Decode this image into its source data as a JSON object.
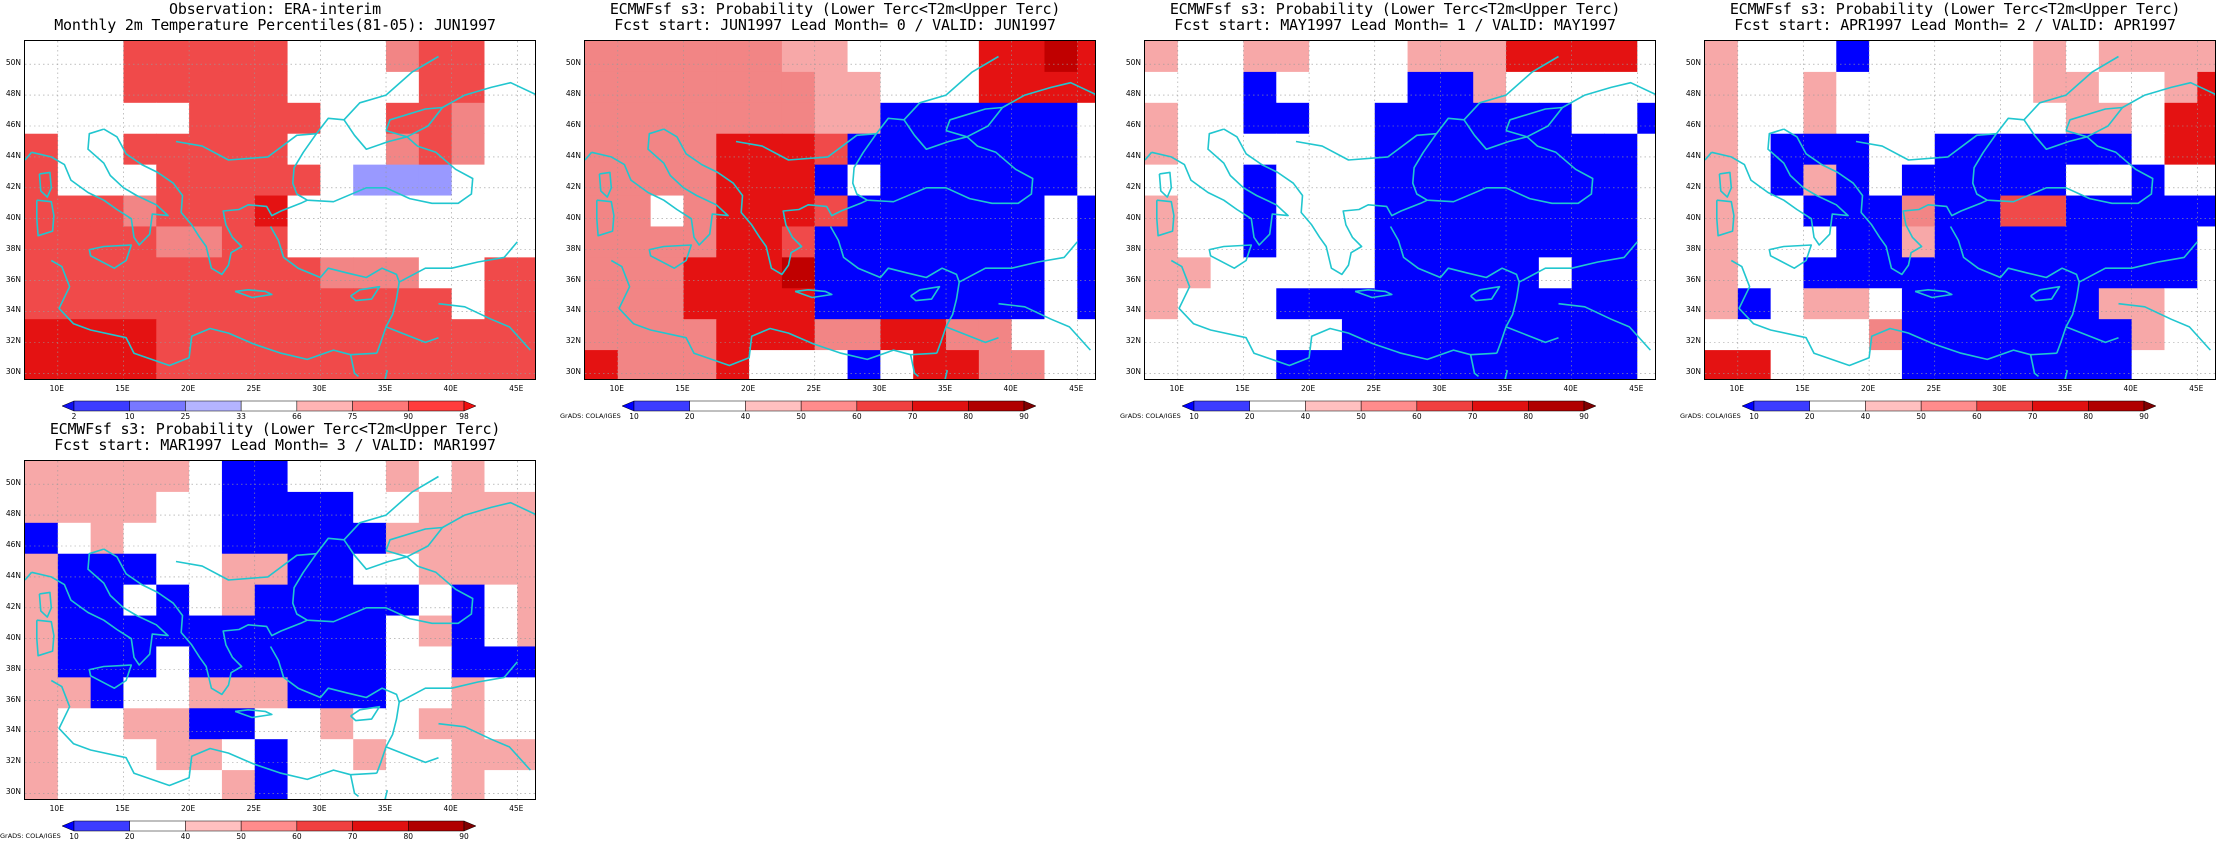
{
  "lat_labels": [
    "50N",
    "48N",
    "46N",
    "44N",
    "42N",
    "40N",
    "38N",
    "36N",
    "34N",
    "32N",
    "30N"
  ],
  "lon_labels": [
    "10E",
    "15E",
    "20E",
    "25E",
    "30E",
    "35E",
    "40E",
    "45E"
  ],
  "lon_range": [
    7.5,
    46.5
  ],
  "lat_range": [
    29.5,
    51.5
  ],
  "grid_origin": {
    "lon": 7.5,
    "lat": 51.5,
    "dlon": 2.5,
    "dlat": 2
  },
  "credit": "GrADS: COLA/IGES",
  "obs_colorbar": {
    "ticks": [
      "2",
      "10",
      "25",
      "33",
      "66",
      "75",
      "90",
      "98"
    ],
    "colors": [
      "#1010f0",
      "#3c3cff",
      "#7878ff",
      "#b4b4ff",
      "#ffffff",
      "#ffb4b4",
      "#ff7878",
      "#ff3c3c",
      "#f01010"
    ]
  },
  "prob_colorbar": {
    "ticks": [
      "10",
      "20",
      "40",
      "50",
      "60",
      "70",
      "80",
      "90"
    ],
    "colors": [
      "#0000ff",
      "#3c3cff",
      "#ffffff",
      "#ffc0c0",
      "#ff8c8c",
      "#f04040",
      "#e01010",
      "#b00000",
      "#800000"
    ]
  },
  "palette": {
    "B": "#0000ff",
    "b": "#9999ff",
    "W": "#ffffff",
    "p": "#f7a8a8",
    "q": "#f28585",
    "r": "#f04a4a",
    "R": "#e41212",
    "d": "#c00000",
    "D": "#990000"
  },
  "panels": [
    {
      "title1": "Observation: ERA-interim",
      "title2": "Monthly 2m Temperature Percentiles(81-05): JUN1997",
      "colorbar": "obs",
      "grid": [
        "WWWrrrrrWWWqrrWW",
        "WWWrrrrrWWWWrrWW",
        "WWWWWrrrrWWrrqWW",
        "rWWrrrrrWWWqrqWW",
        "rWWWrrrrrWbbbWWW",
        "rrrqrrrRWWWWWWWW",
        "rrrrqqrrWWWWWWWW",
        "rrrrrrrrrqqqWWrr",
        "rrrrrrrrrrrrrWrr",
        "RRRRrrrrrrrrrrrr",
        "RRRRrrrrrrrrrrrr"
      ]
    },
    {
      "title1": "ECMWFsf s3: Probability (Lower Terc<T2m<Upper Terc)",
      "title2": "Fcst start: JUN1997  Lead Month= 0 / VALID: JUN1997",
      "colorbar": "prob",
      "grid": [
        "qqqqqqppWWWWRRdR",
        "qqqqqqqppWWWRRRR",
        "qqqqqqqppBBBBBBW",
        "qqqqRRRrBBBBBBBW",
        "qqqqRRRBWBBBBBBW",
        "qqWqRRRrBBBBBBWB",
        "qqqqRRrBBBBBBBWB",
        "qqqRRRdBBBBBBBWB",
        "qqqRRRRBBBBBBBWB",
        "qqqqRRRqqRRqqWWW",
        "RqqqRWWWBWRRqqWW"
      ]
    },
    {
      "title1": "ECMWFsf s3: Probability (Lower Terc<T2m<Upper Terc)",
      "title2": "Fcst start: MAY1997  Lead Month= 1 / VALID: MAY1997",
      "colorbar": "prob",
      "grid": [
        "pWWppWWWpppRRRRW",
        "WWWBWWWWBBpWWWWW",
        "pWWBBWWBBBBBBWWB",
        "pWWWWWWBBBBBBBBW",
        "WWWBWWWBBBBBBBBW",
        "pWWBWWWBBBBBBBBW",
        "pWWBWWWBBBBBBBBW",
        "ppWWWWWBBBBBWBBW",
        "pWWWBBBBBBBBBBBW",
        "WWWWWWBBBBBBBBBW",
        "WWWWBBBBBBBBBBBW"
      ]
    },
    {
      "title1": "ECMWFsf s3: Probability (Lower Terc<T2m<Upper Terc)",
      "title2": "Fcst start: APR1997  Lead Month= 2 / VALID: APR1997",
      "colorbar": "prob",
      "grid": [
        "pWWWBWWWWWpWpppp",
        "pWWpWWWWWWppWWpR",
        "pWWpWWWWWWWppWRR",
        "pWBBBWWBBBBBBWRR",
        "pWBpBWBBBBBWWBWW",
        "pWWBBBqBBrrBBBBB",
        "pWWWBBpBBBBBBBBW",
        "pWWBBBBBBBBBBBBW",
        "pBWppWBBBBBBppWW",
        "WWWWWqBBBBBBBpWW",
        "RRWWWWBBBBBBBWWW"
      ]
    },
    {
      "title1": "ECMWFsf s3: Probability (Lower Terc<T2m<Upper Terc)",
      "title2": "Fcst start: MAR1997  Lead Month= 3 / VALID: MAR1997",
      "colorbar": "prob",
      "grid": [
        "pppppWBBWWWpWpWW",
        "ppppWWBBBBWWpppp",
        "BWpWWWBBBBBppppp",
        "pBBBWWppBBWWpppp",
        "pBBWBWpBBBBBWBWp",
        "pBBBBBBBBBBWpBWp",
        "pBBBWBBBBBBWWBBB",
        "ppBWWpppBBBWWpWW",
        "pWWppBBWWpWWppWW",
        "pWWWppWBWWpWWppp",
        "pWWWWWpBWWWWWpWW"
      ]
    }
  ]
}
